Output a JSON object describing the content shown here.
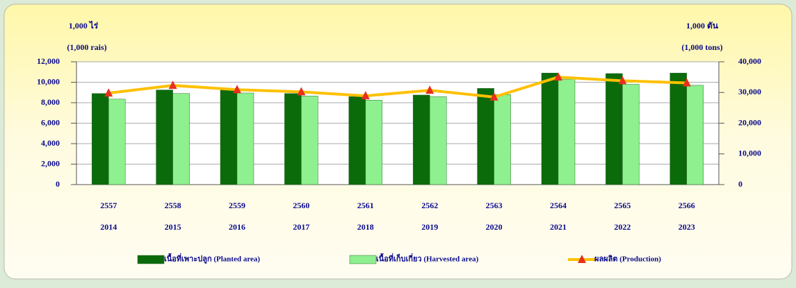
{
  "chart_data": {
    "type": "bar",
    "y_label": "1,000 ไร่",
    "y_label_en": "(1,000 rais)",
    "y2_label": "1,000 ตัน",
    "y2_label_en": "(1,000 tons)",
    "categories": [
      "2557",
      "2558",
      "2559",
      "2560",
      "2561",
      "2562",
      "2563",
      "2564",
      "2565",
      "2566"
    ],
    "categories_ce": [
      "2014",
      "2015",
      "2016",
      "2017",
      "2018",
      "2019",
      "2020",
      "2021",
      "2022",
      "2023"
    ],
    "series": [
      {
        "name": "เนื้อที่เพาะปลูก (Planted area)",
        "type": "bar",
        "color": "#0b6b0b",
        "values": [
          8900,
          9250,
          9300,
          8900,
          8600,
          8750,
          9400,
          10900,
          10850,
          10900
        ]
      },
      {
        "name": "เนื้อที่เก็บเกี่ยว (Harvested area)",
        "type": "bar",
        "color": "#8ef08e",
        "values": [
          8350,
          8900,
          8950,
          8650,
          8250,
          8600,
          8800,
          10300,
          9800,
          9700
        ]
      },
      {
        "name": "ผลผลิต (Production)",
        "type": "line",
        "axis": "y2",
        "color": "#ffc000",
        "marker_color": "#e8301c",
        "values": [
          29800,
          32300,
          30900,
          30200,
          28900,
          30700,
          28500,
          35000,
          33800,
          33100
        ]
      }
    ],
    "ylim": [
      0,
      12000
    ],
    "yticks": [
      0,
      {
        "value": 2000,
        "label": "2,000"
      },
      {
        "value": 4000,
        "label": "4,000"
      },
      {
        "value": 6000,
        "label": "6,000"
      },
      {
        "value": 8000,
        "label": "8,000"
      },
      {
        "value": 10000,
        "label": "10,000"
      },
      {
        "value": 12000,
        "label": "12,000"
      }
    ],
    "y2lim": [
      0,
      40000
    ],
    "y2ticks": [
      0,
      {
        "value": 10000,
        "label": "10,000"
      },
      {
        "value": 20000,
        "label": "20,000"
      },
      {
        "value": 30000,
        "label": "30,000"
      },
      {
        "value": 40000,
        "label": "40,000"
      }
    ],
    "grid": true
  }
}
